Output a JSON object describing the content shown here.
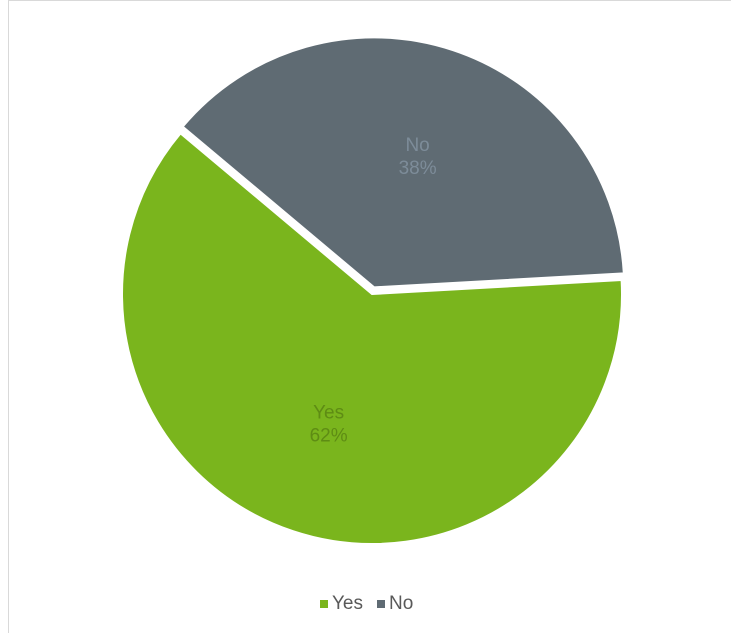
{
  "chart_data": {
    "type": "pie",
    "categories": [
      "Yes",
      "No"
    ],
    "values": [
      62,
      38
    ],
    "value_labels": [
      "62%",
      "38%"
    ],
    "colors": [
      "#7ab51d",
      "#5f6b73"
    ],
    "legend": "bottom"
  }
}
